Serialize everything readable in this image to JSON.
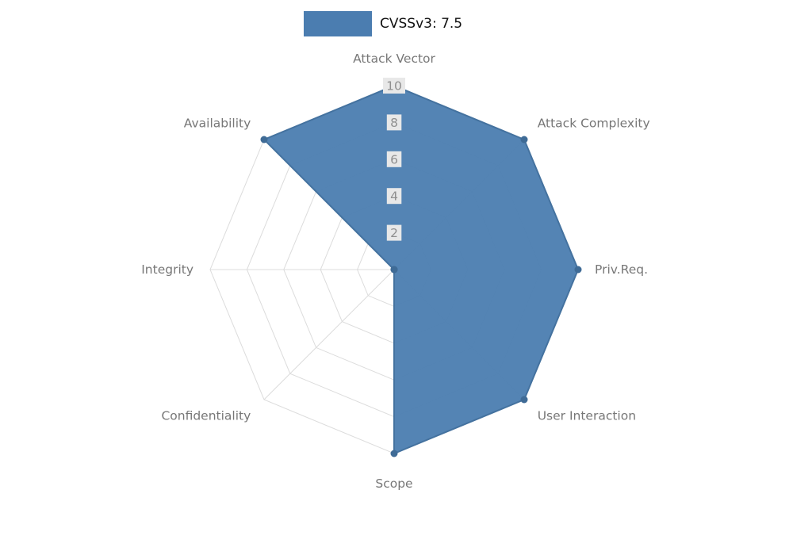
{
  "chart_data": {
    "type": "radar",
    "title": "",
    "legend": "CVSSv3: 7.5",
    "legend_position": "top-center",
    "categories": [
      "Attack Vector",
      "Attack Complexity",
      "Priv.Req.",
      "User Interaction",
      "Scope",
      "Confidentiality",
      "Integrity",
      "Availability"
    ],
    "series": [
      {
        "name": "CVSSv3: 7.5",
        "values": [
          10,
          10,
          10,
          10,
          10,
          0,
          0,
          10
        ]
      }
    ],
    "ticks": [
      "2",
      "4",
      "6",
      "8",
      "10"
    ],
    "tick_values": [
      2,
      4,
      6,
      8,
      10
    ],
    "rlim": [
      0,
      10
    ],
    "grid": true,
    "colors": {
      "fill": "#4b7db0",
      "fill_opacity": "0.95",
      "stroke": "#44729f",
      "marker": "#3f6b96",
      "grid": "#dcdcdc",
      "axis_label": "#777777",
      "tick_text": "#8f8f8f",
      "tick_bg": "#e8e8e8",
      "legend_text": "#111111"
    }
  }
}
